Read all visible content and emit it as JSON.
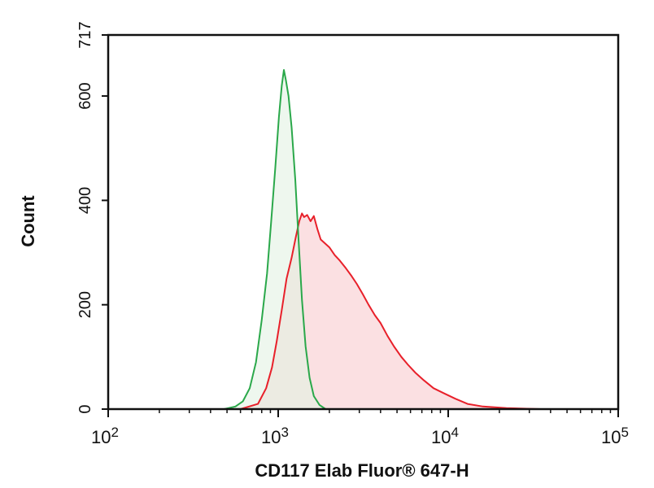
{
  "chart_data": {
    "type": "area",
    "xscale": "log",
    "xlim": [
      100,
      100000
    ],
    "ylim": [
      0,
      717
    ],
    "xlabel": "CD117 Elab Fluor® 647-H",
    "ylabel": "Count",
    "x_ticks": [
      {
        "value": 100,
        "base": "10",
        "exp": "2"
      },
      {
        "value": 1000,
        "base": "10",
        "exp": "3"
      },
      {
        "value": 10000,
        "base": "10",
        "exp": "4"
      },
      {
        "value": 100000,
        "base": "10",
        "exp": "5"
      }
    ],
    "y_ticks": [
      {
        "value": 0,
        "label": "0"
      },
      {
        "value": 200,
        "label": "200"
      },
      {
        "value": 400,
        "label": "400"
      },
      {
        "value": 600,
        "label": "600"
      },
      {
        "value": 717,
        "label": "717"
      }
    ],
    "grid": false,
    "series": [
      {
        "color": "#e8202a",
        "fill": "#fadadd",
        "points": [
          [
            600,
            0
          ],
          [
            760,
            10
          ],
          [
            850,
            40
          ],
          [
            920,
            80
          ],
          [
            980,
            130
          ],
          [
            1050,
            190
          ],
          [
            1120,
            250
          ],
          [
            1200,
            290
          ],
          [
            1270,
            330
          ],
          [
            1330,
            360
          ],
          [
            1380,
            375
          ],
          [
            1420,
            368
          ],
          [
            1480,
            372
          ],
          [
            1550,
            360
          ],
          [
            1620,
            370
          ],
          [
            1700,
            345
          ],
          [
            1780,
            325
          ],
          [
            1880,
            318
          ],
          [
            2000,
            310
          ],
          [
            2150,
            295
          ],
          [
            2300,
            285
          ],
          [
            2500,
            270
          ],
          [
            2700,
            255
          ],
          [
            2900,
            240
          ],
          [
            3150,
            220
          ],
          [
            3400,
            200
          ],
          [
            3700,
            180
          ],
          [
            4000,
            165
          ],
          [
            4400,
            140
          ],
          [
            4800,
            120
          ],
          [
            5300,
            100
          ],
          [
            5800,
            85
          ],
          [
            6400,
            70
          ],
          [
            7200,
            55
          ],
          [
            8200,
            40
          ],
          [
            9500,
            30
          ],
          [
            11000,
            20
          ],
          [
            13000,
            10
          ],
          [
            16000,
            5
          ],
          [
            22000,
            2
          ],
          [
            35000,
            0
          ]
        ]
      },
      {
        "color": "#2aa84a",
        "fill": "#e3f1e3",
        "points": [
          [
            480,
            0
          ],
          [
            560,
            5
          ],
          [
            620,
            15
          ],
          [
            680,
            40
          ],
          [
            740,
            90
          ],
          [
            800,
            170
          ],
          [
            860,
            260
          ],
          [
            910,
            360
          ],
          [
            960,
            460
          ],
          [
            1010,
            560
          ],
          [
            1050,
            620
          ],
          [
            1080,
            650
          ],
          [
            1110,
            630
          ],
          [
            1150,
            600
          ],
          [
            1200,
            540
          ],
          [
            1260,
            440
          ],
          [
            1320,
            320
          ],
          [
            1380,
            210
          ],
          [
            1450,
            120
          ],
          [
            1530,
            60
          ],
          [
            1620,
            25
          ],
          [
            1750,
            8
          ],
          [
            1900,
            0
          ]
        ]
      }
    ]
  }
}
